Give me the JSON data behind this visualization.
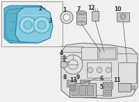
{
  "bg_color": "#f0f0f0",
  "box_bg": "#f5f5f5",
  "box_border": "#999999",
  "teal_dark": "#5ab5cc",
  "teal_light": "#85cce0",
  "teal_mid": "#6ec4d8",
  "gray_part": "#c8c8c8",
  "gray_dark": "#888888",
  "gray_light": "#e0e0e0",
  "gray_outline": "#666666",
  "line_color": "#555555",
  "text_color": "#333333",
  "label_fs": 5.5,
  "white": "#ffffff"
}
